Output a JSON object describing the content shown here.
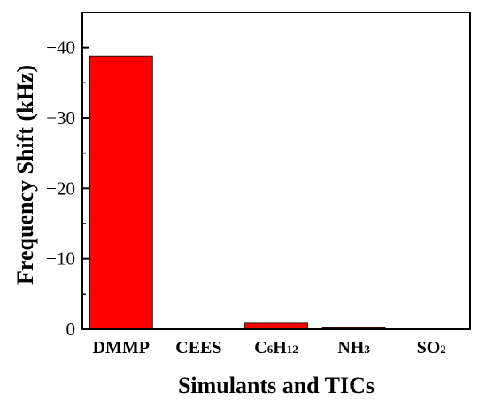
{
  "chart_data": {
    "type": "bar",
    "categories": [
      "DMMP",
      "CEES",
      "C6H12",
      "NH3",
      "SO2"
    ],
    "category_labels": [
      {
        "base": "DMMP",
        "sub": ""
      },
      {
        "base": "CEES",
        "sub": ""
      },
      {
        "base": "C",
        "sub": "6",
        "base2": "H",
        "sub2": "12"
      },
      {
        "base": "NH",
        "sub": "3"
      },
      {
        "base": "SO",
        "sub": "2"
      }
    ],
    "values": [
      -38.8,
      0.0,
      -0.9,
      -0.2,
      0.0
    ],
    "xlabel": "Simulants and TICs",
    "ylabel": "Frequency Shift (kHz)",
    "ylim": [
      0,
      -45
    ],
    "yticks": [
      0,
      -10,
      -20,
      -30,
      -40
    ],
    "ytick_labels": [
      "0",
      "−10",
      "−20",
      "−30",
      "−40"
    ],
    "grid": false,
    "legend": "none",
    "bar_color": "#ff0000",
    "bar_edge_color": "#000000"
  }
}
